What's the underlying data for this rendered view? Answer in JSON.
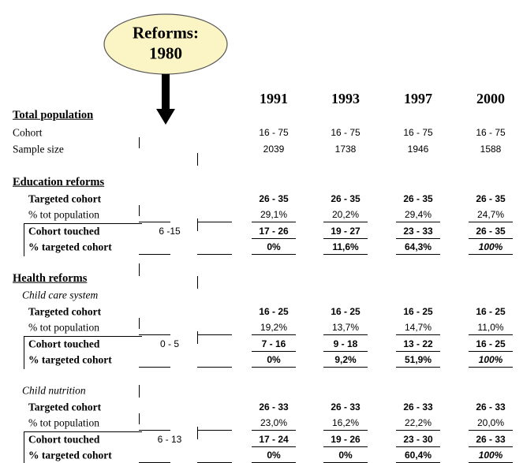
{
  "callout": {
    "line1": "Reforms:",
    "line2": "1980"
  },
  "years": [
    "1991",
    "1993",
    "1997",
    "2000"
  ],
  "sections": [
    {
      "title": "Total population",
      "groups": [
        {
          "rows": [
            {
              "label": "Cohort",
              "values": [
                "16 - 75",
                "16 - 75",
                "16 - 75",
                "16 - 75"
              ]
            },
            {
              "label": "Sample size",
              "values": [
                "2039",
                "1738",
                "1946",
                "1588"
              ]
            }
          ]
        }
      ]
    },
    {
      "title": "Education reforms",
      "groups": [
        {
          "rows": [
            {
              "label": "Targeted cohort",
              "values": [
                "26 - 35",
                "26 - 35",
                "26 - 35",
                "26 - 35"
              ]
            },
            {
              "label": "% tot population",
              "values": [
                "29,1%",
                "20,2%",
                "29,4%",
                "24,7%"
              ]
            },
            {
              "label": "Cohort touched",
              "ages": "6 -15",
              "values": [
                "17 - 26",
                "19 - 27",
                "23 - 33",
                "26 - 35"
              ]
            },
            {
              "label": "% targeted cohort",
              "values": [
                "0%",
                "11,6%",
                "64,3%",
                "100%"
              ]
            }
          ]
        }
      ]
    },
    {
      "title": "Health reforms",
      "groups": [
        {
          "subtitle": "Child care system",
          "rows": [
            {
              "label": "Targeted cohort",
              "values": [
                "16 - 25",
                "16 - 25",
                "16 - 25",
                "16 - 25"
              ]
            },
            {
              "label": "% tot population",
              "values": [
                "19,2%",
                "13,7%",
                "14,7%",
                "11,0%"
              ]
            },
            {
              "label": "Cohort touched",
              "ages": "0 - 5",
              "values": [
                "7 - 16",
                "9 - 18",
                "13 - 22",
                "16 - 25"
              ]
            },
            {
              "label": "% targeted cohort",
              "values": [
                "0%",
                "9,2%",
                "51,9%",
                "100%"
              ]
            }
          ]
        },
        {
          "subtitle": "Child nutrition",
          "rows": [
            {
              "label": "Targeted cohort",
              "values": [
                "26 - 33",
                "26 - 33",
                "26 - 33",
                "26 - 33"
              ]
            },
            {
              "label": "% tot population",
              "values": [
                "23,0%",
                "16,2%",
                "22,2%",
                "20,0%"
              ]
            },
            {
              "label": "Cohort touched",
              "ages": "6 - 13",
              "values": [
                "17 - 24",
                "19 - 26",
                "23 - 30",
                "26 - 33"
              ]
            },
            {
              "label": "% targeted cohort",
              "values": [
                "0%",
                "0%",
                "60,4%",
                "100%"
              ]
            }
          ]
        }
      ]
    }
  ]
}
